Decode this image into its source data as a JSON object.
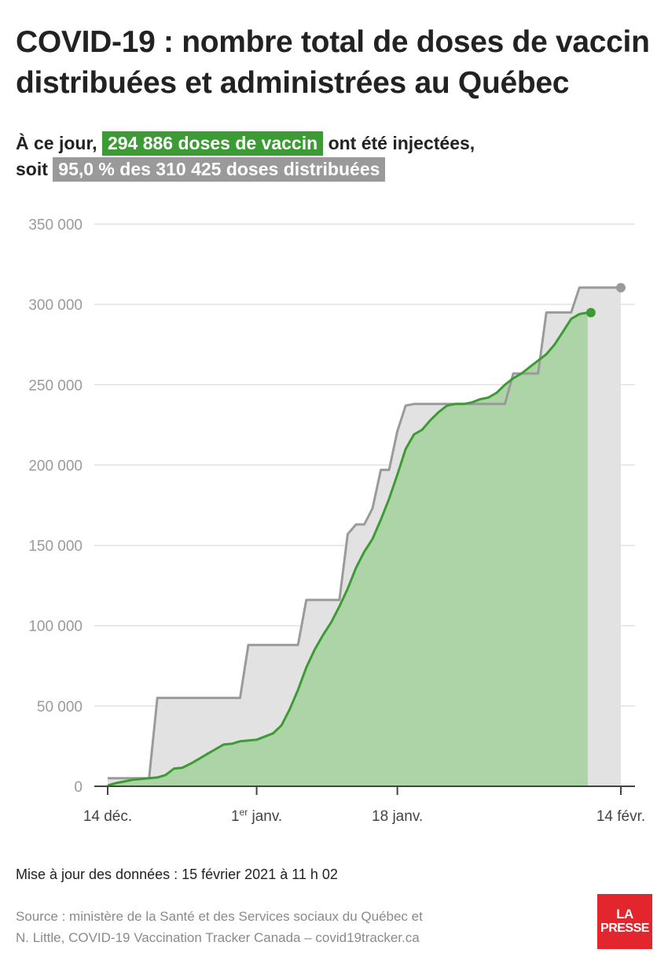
{
  "title": "COVID-19 : nombre total de doses de vaccin distribuées et administrées au Québec",
  "summary": {
    "prefix": "À ce jour,",
    "administered_label": "294 886 doses de vaccin",
    "middle": "ont été injectées,",
    "soit": "soit",
    "distributed_label": "95,0 % des 310 425 doses distribuées"
  },
  "colors": {
    "administered": "#3d9b35",
    "administered_fill": "#acd4a6",
    "distributed": "#9a9a9a",
    "distributed_fill": "#e2e2e2",
    "grid": "#e2e2e2",
    "axis": "#444444",
    "tick_text": "#9a9a9a",
    "logo": "#e3262e"
  },
  "chart_data": {
    "type": "area",
    "y_ticks": [
      "0",
      "50 000",
      "100 000",
      "150 000",
      "200 000",
      "250 000",
      "300 000",
      "350 000"
    ],
    "x_ticks": [
      {
        "x": 0,
        "label": "14 déc."
      },
      {
        "x": 18,
        "label": "1",
        "sup": "er",
        "label_after": " janv."
      },
      {
        "x": 35,
        "label": "18 janv."
      },
      {
        "x": 62,
        "label": "14 févr."
      }
    ],
    "ylim": [
      0,
      350000
    ],
    "xlim": [
      0,
      62
    ],
    "grid": true,
    "series": [
      {
        "key": "distributed",
        "points": [
          [
            0,
            5000
          ],
          [
            5,
            5000
          ],
          [
            6,
            55000
          ],
          [
            16,
            55000
          ],
          [
            17,
            88000
          ],
          [
            23,
            88000
          ],
          [
            24,
            116000
          ],
          [
            28,
            116000
          ],
          [
            29,
            157000
          ],
          [
            30,
            163000
          ],
          [
            31,
            163000
          ],
          [
            32,
            173000
          ],
          [
            33,
            197000
          ],
          [
            34,
            197000
          ],
          [
            35,
            221000
          ],
          [
            36,
            237000
          ],
          [
            37,
            238000
          ],
          [
            48,
            238000
          ],
          [
            49,
            257000
          ],
          [
            52,
            257000
          ],
          [
            53,
            295000
          ],
          [
            56,
            295000
          ],
          [
            57,
            310425
          ],
          [
            62,
            310425
          ]
        ]
      },
      {
        "key": "administered",
        "points": [
          [
            0,
            500
          ],
          [
            1,
            2000
          ],
          [
            2,
            3000
          ],
          [
            3,
            4000
          ],
          [
            4,
            4500
          ],
          [
            5,
            5000
          ],
          [
            6,
            5500
          ],
          [
            7,
            7000
          ],
          [
            8,
            11000
          ],
          [
            9,
            11500
          ],
          [
            10,
            14000
          ],
          [
            11,
            17000
          ],
          [
            12,
            20000
          ],
          [
            13,
            23000
          ],
          [
            14,
            26000
          ],
          [
            15,
            26500
          ],
          [
            16,
            28000
          ],
          [
            17,
            28500
          ],
          [
            18,
            29000
          ],
          [
            19,
            31000
          ],
          [
            20,
            33000
          ],
          [
            21,
            38000
          ],
          [
            22,
            48000
          ],
          [
            23,
            60000
          ],
          [
            24,
            74000
          ],
          [
            25,
            85000
          ],
          [
            26,
            94000
          ],
          [
            27,
            102000
          ],
          [
            28,
            112000
          ],
          [
            29,
            123000
          ],
          [
            30,
            136000
          ],
          [
            31,
            146000
          ],
          [
            32,
            154000
          ],
          [
            33,
            166000
          ],
          [
            34,
            179000
          ],
          [
            35,
            194000
          ],
          [
            36,
            210000
          ],
          [
            37,
            219000
          ],
          [
            38,
            222000
          ],
          [
            39,
            228000
          ],
          [
            40,
            233000
          ],
          [
            41,
            237000
          ],
          [
            42,
            238000
          ],
          [
            43,
            238000
          ],
          [
            44,
            239000
          ],
          [
            45,
            241000
          ],
          [
            46,
            242000
          ],
          [
            47,
            245000
          ],
          [
            48,
            250000
          ],
          [
            49,
            254000
          ],
          [
            50,
            257000
          ],
          [
            51,
            261000
          ],
          [
            52,
            265000
          ],
          [
            53,
            269000
          ],
          [
            54,
            275000
          ],
          [
            55,
            283000
          ],
          [
            56,
            291000
          ],
          [
            57,
            294000
          ],
          [
            58,
            294886
          ]
        ]
      }
    ]
  },
  "footer": {
    "updated": "Mise à jour des données : 15 février 2021 à 11 h 02",
    "source_line1": "Source : ministère de la Santé et des Services sociaux du Québec et",
    "source_line2": "N. Little, COVID-19 Vaccination Tracker Canada – covid19tracker.ca"
  },
  "logo": {
    "line1": "LA",
    "line2": "PRESSE"
  }
}
